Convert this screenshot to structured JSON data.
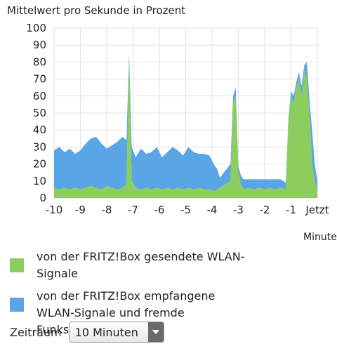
{
  "chart_data": {
    "type": "area",
    "title": "Mittelwert pro Sekunde in Prozent",
    "xlabel": "Minute",
    "x_tick_labels": [
      "-10",
      "-9",
      "-8",
      "-7",
      "-6",
      "-5",
      "-4",
      "-3",
      "-2",
      "-1",
      "Jetzt"
    ],
    "ylim": [
      0,
      100
    ],
    "y_ticks": [
      0,
      10,
      20,
      30,
      40,
      50,
      60,
      70,
      80,
      90,
      100
    ],
    "grid": true,
    "x": [
      -10,
      -9.8,
      -9.6,
      -9.4,
      -9.2,
      -9,
      -8.8,
      -8.6,
      -8.4,
      -8.2,
      -8,
      -7.8,
      -7.6,
      -7.4,
      -7.25,
      -7.15,
      -7.05,
      -6.9,
      -6.7,
      -6.5,
      -6.3,
      -6.1,
      -5.9,
      -5.7,
      -5.5,
      -5.3,
      -5.1,
      -4.9,
      -4.7,
      -4.5,
      -4.3,
      -4.1,
      -3.9,
      -3.8,
      -3.7,
      -3.5,
      -3.3,
      -3.2,
      -3.1,
      -3.0,
      -2.9,
      -2.8,
      -2.6,
      -2.4,
      -2.2,
      -2.0,
      -1.8,
      -1.6,
      -1.4,
      -1.2,
      -1.1,
      -1.0,
      -0.9,
      -0.8,
      -0.7,
      -0.6,
      -0.5,
      -0.4,
      -0.3,
      -0.2,
      -0.1,
      0
    ],
    "series": [
      {
        "name": "von der FRITZ!Box gesendete WLAN-Signale",
        "color": "#8ccd5e",
        "values": [
          6,
          5,
          6,
          5,
          6,
          5,
          6,
          7,
          6,
          5,
          7,
          6,
          5,
          6,
          8,
          80,
          10,
          6,
          5,
          6,
          5,
          6,
          5,
          6,
          5,
          6,
          5,
          6,
          5,
          6,
          5,
          5,
          4,
          5,
          6,
          8,
          10,
          55,
          60,
          15,
          8,
          5,
          6,
          5,
          6,
          5,
          6,
          5,
          6,
          5,
          45,
          60,
          55,
          65,
          70,
          60,
          75,
          70,
          50,
          20,
          10,
          5
        ]
      },
      {
        "name": "von der FRITZ!Box empfangene WLAN-Signale und fremde Funksignale",
        "color": "#5aa5e6",
        "values": [
          22,
          25,
          21,
          24,
          20,
          23,
          26,
          28,
          30,
          27,
          22,
          25,
          28,
          30,
          26,
          5,
          20,
          18,
          24,
          20,
          22,
          24,
          19,
          21,
          25,
          22,
          20,
          24,
          22,
          20,
          21,
          20,
          15,
          12,
          6,
          8,
          10,
          5,
          5,
          4,
          5,
          6,
          5,
          6,
          5,
          6,
          5,
          6,
          5,
          4,
          2,
          3,
          5,
          3,
          4,
          6,
          3,
          10,
          8,
          20,
          10,
          5
        ]
      }
    ]
  },
  "legend": {
    "sent": "von der FRITZ!Box gesendete WLAN-Signale",
    "received": "von der FRITZ!Box empfangene WLAN-Signale und fremde Funksignale"
  },
  "period": {
    "label": "Zeitraum",
    "value": "10 Minuten"
  }
}
